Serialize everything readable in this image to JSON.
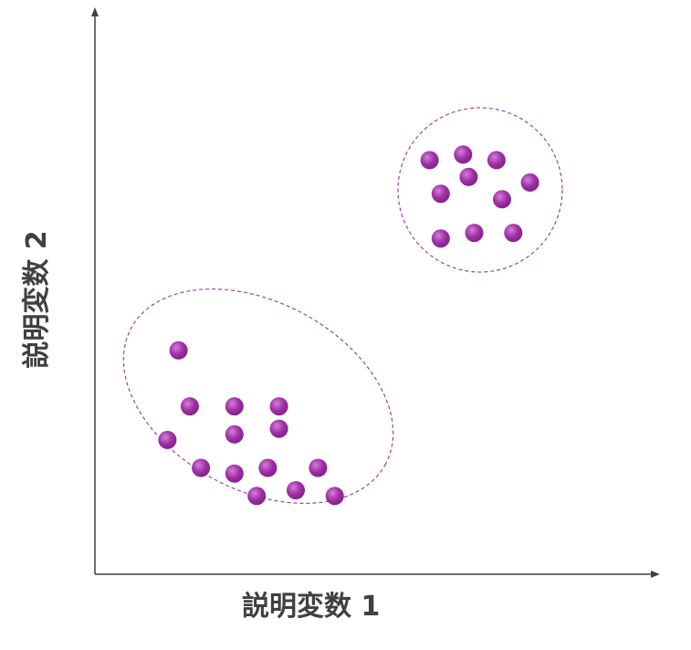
{
  "diagram": {
    "x_axis_label": "説明変数 1",
    "y_axis_label": "説明変数 2",
    "colors": {
      "axis": "#404040",
      "point": "#9b2aa0",
      "point_highlight": "#c868c8",
      "cluster_outline": "#a040a8"
    },
    "clusters": [
      {
        "name": "cluster-lower-left",
        "shape": "ellipse",
        "points": [
          [
            0.15,
            0.4
          ],
          [
            0.17,
            0.3
          ],
          [
            0.25,
            0.3
          ],
          [
            0.33,
            0.3
          ],
          [
            0.25,
            0.25
          ],
          [
            0.33,
            0.26
          ],
          [
            0.13,
            0.24
          ],
          [
            0.19,
            0.19
          ],
          [
            0.25,
            0.18
          ],
          [
            0.31,
            0.19
          ],
          [
            0.4,
            0.19
          ],
          [
            0.29,
            0.14
          ],
          [
            0.36,
            0.15
          ],
          [
            0.43,
            0.14
          ]
        ]
      },
      {
        "name": "cluster-upper-right",
        "shape": "circle",
        "points": [
          [
            0.6,
            0.74
          ],
          [
            0.66,
            0.75
          ],
          [
            0.72,
            0.74
          ],
          [
            0.67,
            0.71
          ],
          [
            0.78,
            0.7
          ],
          [
            0.62,
            0.68
          ],
          [
            0.73,
            0.67
          ],
          [
            0.62,
            0.6
          ],
          [
            0.68,
            0.61
          ],
          [
            0.75,
            0.61
          ]
        ]
      }
    ]
  }
}
